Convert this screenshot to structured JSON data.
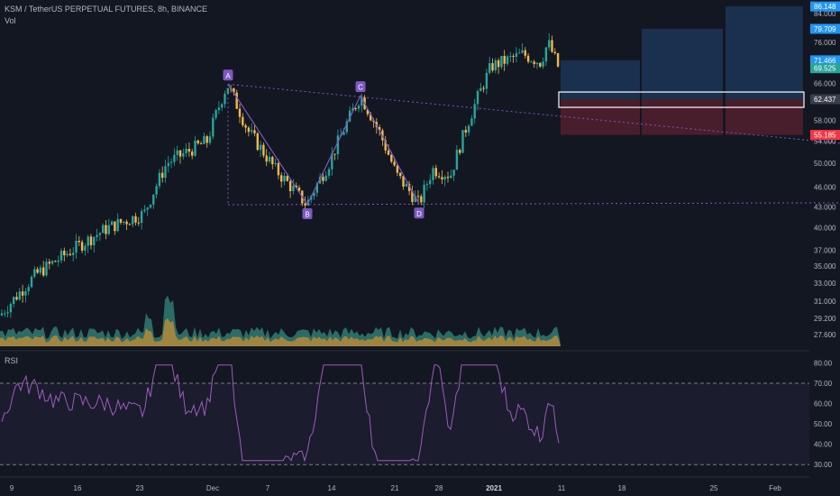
{
  "header": {
    "title": "KSM / TetherUS PERPETUAL FUTURES, 8h, BINANCE",
    "volume_label": "Vol",
    "rsi_label": "RSI"
  },
  "colors": {
    "background": "#131722",
    "up": "#26a69a",
    "down": "#f2b84b",
    "pattern": "#7e57c2",
    "rsi_line": "#9c5cb8",
    "target_zone": "#1e3a5f",
    "stop_zone": "#5b2130"
  },
  "chart_data": {
    "type": "candlestick",
    "price_axis": {
      "scale": "log",
      "range": [
        26.5,
        87
      ],
      "ticks": [
        84.0,
        76.0,
        66.0,
        58.0,
        54.0,
        50.0,
        46.0,
        43.0,
        40.0,
        37.0,
        35.0,
        33.0,
        31.0,
        29.2,
        27.6
      ],
      "badges": [
        {
          "value": 86.148,
          "label": "86.148",
          "color": "#2196f3"
        },
        {
          "value": 79.709,
          "label": "79.709",
          "color": "#2196f3"
        },
        {
          "value": 71.466,
          "label": "71.466",
          "color": "#2196f3"
        },
        {
          "value": 69.525,
          "label": "69.525",
          "color": "#26a69a"
        },
        {
          "value": 62.437,
          "label": "62.437",
          "color": "#3a3e4a"
        },
        {
          "value": 55.185,
          "label": "55.185",
          "color": "#f23645"
        }
      ]
    },
    "time_axis": {
      "labels": [
        "9",
        "16",
        "23",
        "Dec",
        "7",
        "14",
        "21",
        "28",
        "2021",
        "11",
        "18",
        "25",
        "Feb"
      ],
      "bold": [
        "2021"
      ]
    },
    "pattern_points": [
      {
        "label": "A",
        "value": 65.8
      },
      {
        "label": "B",
        "value": 43.3
      },
      {
        "label": "C",
        "value": 63.2
      },
      {
        "label": "D",
        "value": 43.4
      }
    ],
    "rsi": {
      "range": [
        27,
        82
      ],
      "ticks": [
        80.0,
        70.0,
        60.0,
        50.0,
        40.0,
        30.0
      ],
      "upper_band": 70,
      "lower_band": 30
    },
    "grid": false
  }
}
